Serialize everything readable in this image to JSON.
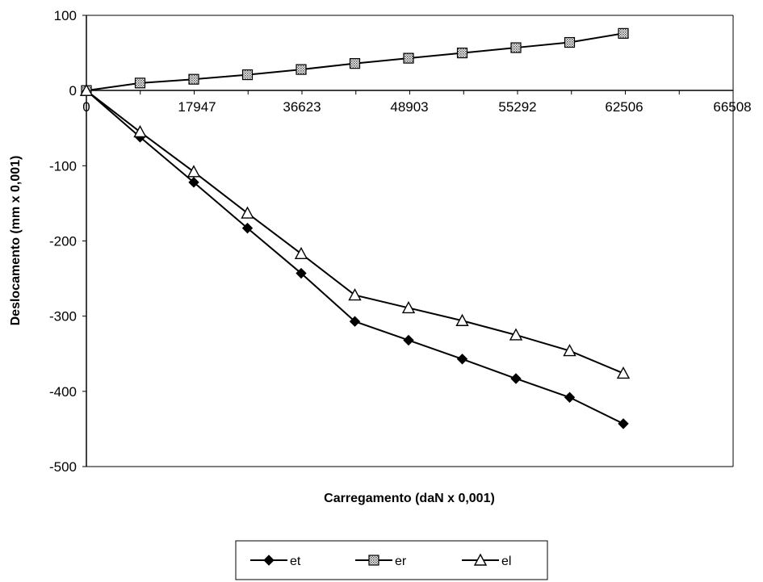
{
  "chart_data": {
    "type": "line",
    "title": "",
    "xlabel": "Carregamento (daN x 0,001)",
    "ylabel": "Deslocamento (mm x 0,001)",
    "ylim": [
      -500,
      100
    ],
    "y_ticks": [
      "100",
      "0",
      "-100",
      "-200",
      "-300",
      "-400",
      "-500"
    ],
    "x_tick_labels": [
      "0",
      "17947",
      "36623",
      "48903",
      "55292",
      "62506",
      "66508"
    ],
    "x_point_count": 11,
    "grid": false,
    "legend_position": "bottom",
    "colors": {
      "line": "#000000",
      "marker_er": "#9a9a9a",
      "marker_el": "#ffffff"
    },
    "series": [
      {
        "name": "et",
        "marker": "diamond",
        "values": [
          0,
          -62,
          -122,
          -183,
          -243,
          -307,
          -332,
          -357,
          -383,
          -408,
          -443
        ]
      },
      {
        "name": "er",
        "marker": "hatched-square",
        "values": [
          0,
          10,
          15,
          21,
          28,
          36,
          43,
          50,
          57,
          64,
          76
        ]
      },
      {
        "name": "el",
        "marker": "triangle",
        "values": [
          0,
          -55,
          -108,
          -163,
          -217,
          -272,
          -289,
          -306,
          -325,
          -346,
          -376
        ]
      }
    ]
  }
}
